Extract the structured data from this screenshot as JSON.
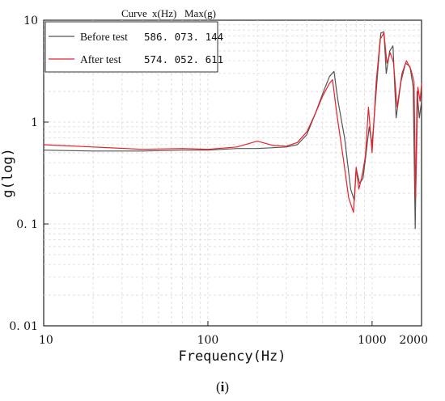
{
  "caption": {
    "open": "(",
    "letter": "i",
    "close": ")"
  },
  "chart_data": {
    "type": "line",
    "xlabel": "Frequency(Hz)",
    "ylabel": "g(log)",
    "x_scale": "log",
    "y_scale": "log",
    "xlim": [
      10,
      2000
    ],
    "ylim": [
      0.01,
      10
    ],
    "x_ticks": [
      {
        "value": 10,
        "label": "10"
      },
      {
        "value": 100,
        "label": "100"
      },
      {
        "value": 1000,
        "label": "1000"
      },
      {
        "value": 2000,
        "label": "2000"
      }
    ],
    "y_ticks": [
      {
        "value": 10,
        "label": "10"
      },
      {
        "value": 1,
        "label": "1"
      },
      {
        "value": 0.1,
        "label": "0. 1"
      },
      {
        "value": 0.01,
        "label": "0. 01"
      }
    ],
    "grid": true,
    "legend": {
      "position": "top-left",
      "headers": [
        "Curve",
        "x(Hz)",
        "Max(g)"
      ]
    },
    "series": [
      {
        "name": "Before test",
        "color": "#555555",
        "peak_x": "586. 07",
        "max_g": "3. 144",
        "x": [
          10,
          20,
          40,
          70,
          100,
          150,
          200,
          250,
          300,
          350,
          400,
          450,
          500,
          550,
          586.07,
          620,
          680,
          740,
          780,
          800,
          840,
          880,
          920,
          960,
          1000,
          1080,
          1130,
          1180,
          1220,
          1280,
          1340,
          1400,
          1500,
          1600,
          1700,
          1780,
          1830,
          1880,
          1940,
          2000
        ],
        "y": [
          0.53,
          0.52,
          0.52,
          0.53,
          0.53,
          0.55,
          0.55,
          0.56,
          0.57,
          0.6,
          0.75,
          1.2,
          1.9,
          2.8,
          3.144,
          1.6,
          0.7,
          0.22,
          0.17,
          0.35,
          0.25,
          0.28,
          0.5,
          0.9,
          0.6,
          3.0,
          7.5,
          7.7,
          3.0,
          5.0,
          5.6,
          1.1,
          2.5,
          3.8,
          3.5,
          2.2,
          0.09,
          2.0,
          1.1,
          1.6
        ]
      },
      {
        "name": "After test",
        "color": "#e8202a",
        "peak_x": "574. 05",
        "max_g": "2. 611",
        "x": [
          10,
          20,
          40,
          70,
          100,
          150,
          200,
          250,
          300,
          350,
          400,
          450,
          500,
          550,
          574.05,
          610,
          660,
          720,
          770,
          800,
          830,
          870,
          910,
          950,
          1000,
          1060,
          1120,
          1180,
          1230,
          1290,
          1350,
          1420,
          1520,
          1620,
          1720,
          1800,
          1840,
          1900,
          1960,
          2000
        ],
        "y": [
          0.6,
          0.57,
          0.54,
          0.55,
          0.54,
          0.57,
          0.65,
          0.59,
          0.58,
          0.63,
          0.8,
          1.2,
          1.8,
          2.4,
          2.611,
          1.2,
          0.5,
          0.18,
          0.13,
          0.36,
          0.22,
          0.3,
          0.46,
          1.4,
          0.5,
          2.5,
          6.5,
          7.5,
          3.8,
          4.8,
          3.8,
          1.4,
          3.0,
          4.0,
          3.3,
          2.5,
          0.18,
          2.2,
          1.6,
          2.4
        ]
      }
    ]
  }
}
